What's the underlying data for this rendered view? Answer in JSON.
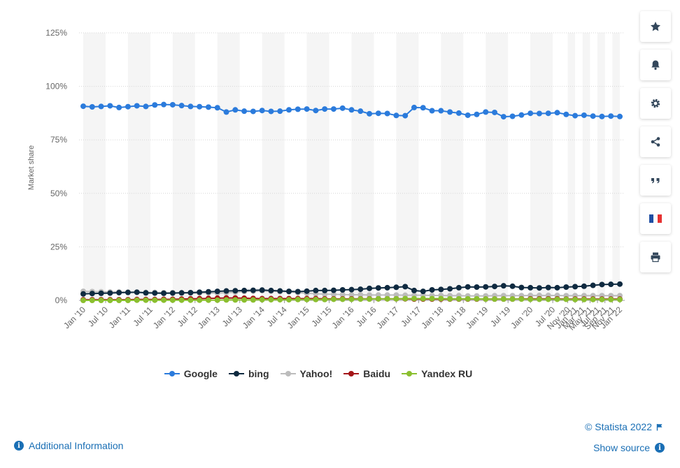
{
  "chart_data": {
    "type": "line",
    "ylabel": "Market share",
    "ylim": [
      0,
      125
    ],
    "yticks": [
      0,
      25,
      50,
      75,
      100,
      125
    ],
    "ytick_labels": [
      "0%",
      "25%",
      "50%",
      "75%",
      "100%",
      "125%"
    ],
    "x_start": "2010-01",
    "x_end": "2022-01",
    "xtick_labels": [
      "Jan '10",
      "Jul '10",
      "Jan '11",
      "Jul '11",
      "Jan '12",
      "Jul '12",
      "Jan '13",
      "Jul '13",
      "Jan '14",
      "Jul '14",
      "Jan '15",
      "Jul '15",
      "Jan '16",
      "Jul '16",
      "Jan '17",
      "Jul '17",
      "Jan '18",
      "Jul '18",
      "Jan '19",
      "Jul '19",
      "Jan '20",
      "Jul '20",
      "Nov '20",
      "Jan '21",
      "Mar '21",
      "May '21",
      "Jul '21",
      "Sep '21",
      "Nov '21",
      "Jan '22"
    ],
    "xtick_months": [
      "2010-01",
      "2010-07",
      "2011-01",
      "2011-07",
      "2012-01",
      "2012-07",
      "2013-01",
      "2013-07",
      "2014-01",
      "2014-07",
      "2015-01",
      "2015-07",
      "2016-01",
      "2016-07",
      "2017-01",
      "2017-07",
      "2018-01",
      "2018-07",
      "2019-01",
      "2019-07",
      "2020-01",
      "2020-07",
      "2020-11",
      "2021-01",
      "2021-03",
      "2021-05",
      "2021-07",
      "2021-09",
      "2021-11",
      "2022-01"
    ],
    "grid": true,
    "legend_position": "bottom",
    "series": [
      {
        "name": "Google",
        "color": "#2b7bdc",
        "values": [
          90.7,
          90.4,
          90.6,
          90.9,
          90.1,
          90.5,
          90.9,
          90.6,
          91.3,
          91.5,
          91.4,
          91.0,
          90.6,
          90.5,
          90.3,
          90.0,
          88.0,
          89.0,
          88.4,
          88.3,
          88.7,
          88.3,
          88.4,
          89.0,
          89.3,
          89.4,
          88.7,
          89.4,
          89.4,
          89.8,
          89.0,
          88.4,
          87.2,
          87.4,
          87.3,
          86.4,
          86.3,
          90.1,
          90.0,
          88.6,
          88.6,
          88.0,
          87.5,
          86.5,
          86.9,
          88.0,
          87.8,
          85.8,
          86.0,
          86.6,
          87.4,
          87.3,
          87.4,
          87.7,
          86.9,
          86.3,
          86.5,
          86.1,
          85.9,
          86.1,
          85.9
        ]
      },
      {
        "name": "bing",
        "color": "#0f2a40",
        "values": [
          3.0,
          3.2,
          3.3,
          3.4,
          3.6,
          3.7,
          3.8,
          3.5,
          3.4,
          3.3,
          3.4,
          3.5,
          3.6,
          3.8,
          4.0,
          4.2,
          4.4,
          4.5,
          4.6,
          4.7,
          4.8,
          4.6,
          4.4,
          4.2,
          4.1,
          4.3,
          4.6,
          4.6,
          4.7,
          4.9,
          5.0,
          5.2,
          5.6,
          5.8,
          5.9,
          6.1,
          6.4,
          4.6,
          4.2,
          4.9,
          5.1,
          5.4,
          5.9,
          6.3,
          6.2,
          6.3,
          6.5,
          6.8,
          6.6,
          6.0,
          5.9,
          5.8,
          6.0,
          5.9,
          6.2,
          6.4,
          6.6,
          7.0,
          7.4,
          7.5,
          7.6
        ]
      },
      {
        "name": "Yahoo!",
        "color": "#bcbcbc",
        "values": [
          4.2,
          4.1,
          4.0,
          3.9,
          3.9,
          3.8,
          3.8,
          3.7,
          3.7,
          3.6,
          3.6,
          3.5,
          3.4,
          3.4,
          3.4,
          3.4,
          3.6,
          3.8,
          4.1,
          4.3,
          4.5,
          4.3,
          4.1,
          4.0,
          3.6,
          3.3,
          3.1,
          2.9,
          2.8,
          2.7,
          2.6,
          2.6,
          2.5,
          2.5,
          2.5,
          2.5,
          2.4,
          2.4,
          2.4,
          2.3,
          2.3,
          2.2,
          2.2,
          2.1,
          2.1,
          2.1,
          2.2,
          2.2,
          2.2,
          2.2,
          2.3,
          2.3,
          2.3,
          2.3,
          2.2,
          2.2,
          2.2,
          2.2,
          2.2,
          2.2,
          2.2
        ]
      },
      {
        "name": "Baidu",
        "color": "#a41518",
        "values": [
          0.3,
          0.3,
          0.3,
          0.3,
          0.3,
          0.3,
          0.4,
          0.4,
          0.4,
          0.5,
          0.5,
          0.6,
          0.7,
          0.8,
          0.9,
          1.0,
          1.1,
          1.1,
          1.0,
          0.9,
          0.8,
          0.8,
          0.8,
          0.8,
          0.8,
          0.8,
          0.8,
          0.7,
          0.7,
          0.7,
          0.7,
          0.7,
          0.7,
          0.7,
          0.7,
          0.7,
          0.7,
          0.6,
          0.6,
          0.6,
          0.6,
          0.6,
          0.6,
          0.6,
          0.6,
          0.6,
          0.6,
          0.6,
          0.6,
          0.7,
          0.7,
          0.7,
          0.7,
          0.7,
          0.6,
          0.6,
          0.6,
          0.6,
          0.6,
          0.6,
          0.6
        ]
      },
      {
        "name": "Yandex RU",
        "color": "#8bbf2f",
        "values": [
          0.0,
          0.0,
          0.0,
          0.0,
          0.0,
          0.0,
          0.1,
          0.1,
          0.1,
          0.1,
          0.1,
          0.1,
          0.1,
          0.1,
          0.1,
          0.1,
          0.2,
          0.2,
          0.2,
          0.2,
          0.3,
          0.3,
          0.3,
          0.3,
          0.4,
          0.4,
          0.4,
          0.4,
          0.5,
          0.5,
          0.5,
          0.6,
          0.6,
          0.7,
          0.7,
          0.7,
          0.8,
          0.8,
          0.8,
          0.8,
          0.8,
          0.7,
          0.7,
          0.7,
          0.7,
          0.6,
          0.6,
          0.6,
          0.6,
          0.6,
          0.5,
          0.5,
          0.5,
          0.5,
          0.5,
          0.4,
          0.4,
          0.4,
          0.4,
          0.4,
          0.4
        ]
      }
    ]
  },
  "toolbar": {
    "icons": [
      "star-icon",
      "bell-icon",
      "gear-icon",
      "share-icon",
      "quote-icon",
      "france-flag-icon",
      "print-icon"
    ]
  },
  "footer": {
    "additional_info": "Additional Information",
    "copyright": "© Statista 2022",
    "show_source": "Show source"
  }
}
